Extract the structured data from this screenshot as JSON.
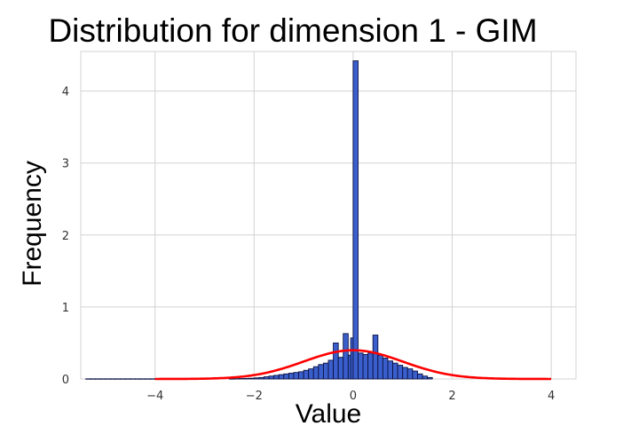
{
  "chart_data": {
    "type": "bar",
    "title": "Distribution for dimension 1 - GIM",
    "xlabel": "Value",
    "ylabel": "Frequency",
    "xlim": [
      -5.5,
      4.5
    ],
    "ylim": [
      0,
      4.55
    ],
    "xticks": [
      -4,
      -2,
      0,
      2,
      4
    ],
    "yticks": [
      0,
      1,
      2,
      3,
      4
    ],
    "grid": true,
    "colors": {
      "bars": "#3a5fcd",
      "bar_edge": "#0a1040",
      "curve": "#ff0000",
      "grid": "#d3d3d3"
    },
    "histogram": {
      "bin_width": 0.1,
      "bins": [
        {
          "x": -5.35,
          "y": 0.002
        },
        {
          "x": -5.25,
          "y": 0.002
        },
        {
          "x": -5.15,
          "y": 0.002
        },
        {
          "x": -5.05,
          "y": 0.002
        },
        {
          "x": -4.95,
          "y": 0.002
        },
        {
          "x": -4.85,
          "y": 0.002
        },
        {
          "x": -4.75,
          "y": 0.002
        },
        {
          "x": -4.65,
          "y": 0.002
        },
        {
          "x": -4.55,
          "y": 0.002
        },
        {
          "x": -4.45,
          "y": 0.002
        },
        {
          "x": -4.35,
          "y": 0.002
        },
        {
          "x": -4.25,
          "y": 0.002
        },
        {
          "x": -4.15,
          "y": 0.002
        },
        {
          "x": -4.05,
          "y": 0.002
        },
        {
          "x": -3.95,
          "y": 0.002
        },
        {
          "x": -2.45,
          "y": 0.003
        },
        {
          "x": -2.35,
          "y": 0.004
        },
        {
          "x": -2.25,
          "y": 0.006
        },
        {
          "x": -2.15,
          "y": 0.008
        },
        {
          "x": -2.05,
          "y": 0.01
        },
        {
          "x": -1.95,
          "y": 0.015
        },
        {
          "x": -1.85,
          "y": 0.02
        },
        {
          "x": -1.75,
          "y": 0.03
        },
        {
          "x": -1.65,
          "y": 0.04
        },
        {
          "x": -1.55,
          "y": 0.05
        },
        {
          "x": -1.45,
          "y": 0.06
        },
        {
          "x": -1.35,
          "y": 0.07
        },
        {
          "x": -1.25,
          "y": 0.08
        },
        {
          "x": -1.15,
          "y": 0.09
        },
        {
          "x": -1.05,
          "y": 0.1
        },
        {
          "x": -0.95,
          "y": 0.12
        },
        {
          "x": -0.85,
          "y": 0.14
        },
        {
          "x": -0.75,
          "y": 0.17
        },
        {
          "x": -0.65,
          "y": 0.2
        },
        {
          "x": -0.55,
          "y": 0.22
        },
        {
          "x": -0.45,
          "y": 0.26
        },
        {
          "x": -0.35,
          "y": 0.5
        },
        {
          "x": -0.25,
          "y": 0.3
        },
        {
          "x": -0.15,
          "y": 0.63
        },
        {
          "x": -0.05,
          "y": 0.33
        },
        {
          "x": 0.0,
          "y": 0.57
        },
        {
          "x": 0.05,
          "y": 4.42
        },
        {
          "x": 0.15,
          "y": 0.36
        },
        {
          "x": 0.25,
          "y": 0.34
        },
        {
          "x": 0.35,
          "y": 0.36
        },
        {
          "x": 0.45,
          "y": 0.61
        },
        {
          "x": 0.55,
          "y": 0.33
        },
        {
          "x": 0.65,
          "y": 0.29
        },
        {
          "x": 0.75,
          "y": 0.25
        },
        {
          "x": 0.85,
          "y": 0.22
        },
        {
          "x": 0.95,
          "y": 0.19
        },
        {
          "x": 1.05,
          "y": 0.16
        },
        {
          "x": 1.15,
          "y": 0.14
        },
        {
          "x": 1.25,
          "y": 0.11
        },
        {
          "x": 1.35,
          "y": 0.07
        },
        {
          "x": 1.45,
          "y": 0.04
        },
        {
          "x": 1.55,
          "y": 0.02
        }
      ]
    },
    "curve": {
      "type": "normal_pdf",
      "mean": 0,
      "std": 1,
      "x_range": [
        -4,
        4
      ]
    }
  }
}
